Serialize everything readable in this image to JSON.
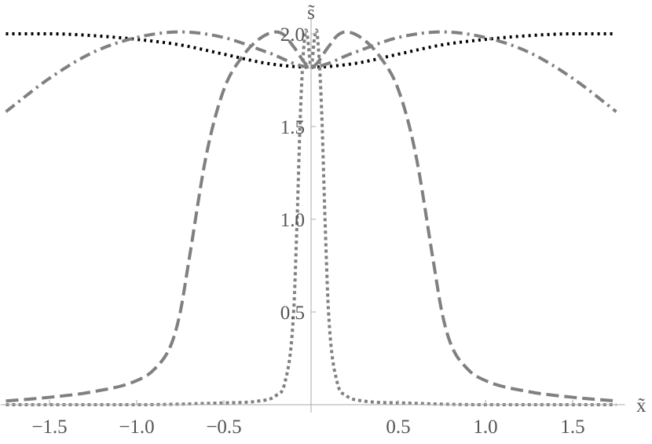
{
  "chart_data": {
    "type": "line",
    "title": "",
    "xlabel": "x̃",
    "ylabel": "s̃",
    "xlim": [
      -1.78,
      1.8
    ],
    "ylim": [
      0.0,
      2.09
    ],
    "grid": false,
    "legend": "none",
    "x_ticks": [
      {
        "value": -1.5,
        "label": "−1.5"
      },
      {
        "value": -1.0,
        "label": "−1.0"
      },
      {
        "value": -0.5,
        "label": "−0.5"
      },
      {
        "value": 0.5,
        "label": "0.5"
      },
      {
        "value": 1.0,
        "label": "1.0"
      },
      {
        "value": 1.5,
        "label": "1.5"
      }
    ],
    "y_ticks": [
      {
        "value": 0.5,
        "label": "0.5"
      },
      {
        "value": 1.0,
        "label": "1.0"
      },
      {
        "value": 1.5,
        "label": "1.5"
      },
      {
        "value": 2.0,
        "label": "2.0"
      }
    ],
    "series": [
      {
        "style": "dotted-black",
        "color": "#000000",
        "dash": "3 5",
        "width": 4,
        "x": [
          -1.75,
          -1.5,
          -1.25,
          -1.0,
          -0.75,
          -0.5,
          -0.25,
          0.0,
          0.25,
          0.5,
          0.75,
          1.0,
          1.25,
          1.5,
          1.75
        ],
        "y": [
          2.0,
          2.0,
          1.99,
          1.97,
          1.94,
          1.89,
          1.84,
          1.82,
          1.84,
          1.89,
          1.94,
          1.97,
          1.99,
          2.0,
          2.0
        ]
      },
      {
        "style": "dash-dot",
        "color": "#808080",
        "dash": "14 6 3 6",
        "width": 4,
        "x": [
          -1.75,
          -1.5,
          -1.25,
          -1.0,
          -0.75,
          -0.5,
          -0.25,
          0.0,
          0.25,
          0.5,
          0.75,
          1.0,
          1.25,
          1.5,
          1.75
        ],
        "y": [
          1.58,
          1.76,
          1.9,
          1.98,
          2.01,
          1.98,
          1.9,
          1.82,
          1.9,
          1.98,
          2.01,
          1.98,
          1.9,
          1.76,
          1.58
        ]
      },
      {
        "style": "dashed",
        "color": "#808080",
        "dash": "16 7",
        "width": 4,
        "x": [
          -1.75,
          -1.5,
          -1.25,
          -1.0,
          -0.9,
          -0.8,
          -0.75,
          -0.7,
          -0.6,
          -0.5,
          -0.4,
          -0.3,
          -0.2,
          -0.15,
          -0.1,
          0.0,
          0.1,
          0.15,
          0.2,
          0.3,
          0.4,
          0.5,
          0.6,
          0.7,
          0.75,
          0.8,
          0.9,
          1.0,
          1.25,
          1.5,
          1.75
        ],
        "y": [
          0.02,
          0.04,
          0.07,
          0.13,
          0.19,
          0.33,
          0.5,
          0.78,
          1.35,
          1.7,
          1.87,
          1.97,
          2.01,
          1.99,
          1.93,
          1.82,
          1.93,
          1.99,
          2.01,
          1.97,
          1.87,
          1.7,
          1.35,
          0.78,
          0.5,
          0.33,
          0.19,
          0.13,
          0.07,
          0.04,
          0.02
        ]
      },
      {
        "style": "dotted-gray",
        "color": "#808080",
        "dash": "4 4",
        "width": 4,
        "x": [
          -1.75,
          -1.0,
          -0.5,
          -0.3,
          -0.2,
          -0.15,
          -0.1,
          -0.08,
          -0.06,
          -0.04,
          -0.03,
          -0.02,
          0.0,
          0.02,
          0.03,
          0.04,
          0.06,
          0.08,
          0.1,
          0.15,
          0.2,
          0.3,
          0.5,
          1.0,
          1.75
        ],
        "y": [
          0.0,
          0.0,
          0.01,
          0.02,
          0.05,
          0.12,
          0.5,
          1.0,
          1.6,
          1.95,
          2.02,
          1.98,
          1.82,
          1.98,
          2.02,
          1.95,
          1.6,
          1.0,
          0.5,
          0.12,
          0.05,
          0.02,
          0.01,
          0.0,
          0.0
        ]
      }
    ]
  }
}
